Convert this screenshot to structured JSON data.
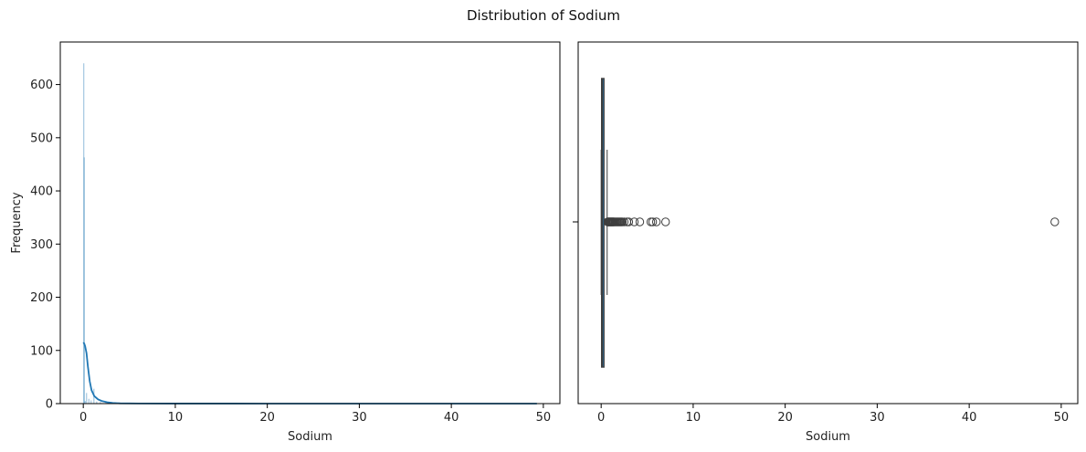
{
  "figure": {
    "suptitle": "Distribution of Sodium"
  },
  "chart_data": [
    {
      "type": "bar",
      "subtype": "histogram-with-kde",
      "title": "",
      "xlabel": "Sodium",
      "ylabel": "Frequency",
      "xlim": [
        -2.5,
        51.8
      ],
      "ylim": [
        0,
        680
      ],
      "xticks": [
        0,
        10,
        20,
        30,
        40,
        50
      ],
      "yticks": [
        0,
        100,
        200,
        300,
        400,
        500,
        600
      ],
      "bar_color": "#1f77b4",
      "kde_color": "#1f77b4",
      "bins": [
        {
          "x": 0.0,
          "count": 640
        },
        {
          "x": 0.05,
          "count": 463
        },
        {
          "x": 0.15,
          "count": 5
        },
        {
          "x": 0.3,
          "count": 20
        },
        {
          "x": 0.55,
          "count": 9
        },
        {
          "x": 0.8,
          "count": 6
        },
        {
          "x": 1.1,
          "count": 28
        },
        {
          "x": 1.4,
          "count": 4
        },
        {
          "x": 1.8,
          "count": 3
        },
        {
          "x": 2.4,
          "count": 2
        }
      ],
      "kde": {
        "x": [
          0,
          0.1,
          0.2,
          0.35,
          0.5,
          0.7,
          0.9,
          1.2,
          1.6,
          2.0,
          2.6,
          3.2,
          4.0,
          6,
          10,
          20,
          30,
          40,
          49.3
        ],
        "y": [
          115,
          113,
          108,
          95,
          70,
          42,
          25,
          14,
          8,
          5,
          2.5,
          1.2,
          0.5,
          0.2,
          0.1,
          0.05,
          0.05,
          0.05,
          0.05
        ]
      }
    },
    {
      "type": "box",
      "title": "",
      "xlabel": "Sodium",
      "xlim": [
        -2.5,
        51.8
      ],
      "xticks": [
        0,
        10,
        20,
        30,
        40,
        50
      ],
      "box_color": "#1f77b4",
      "edge_color": "#3f3f3f",
      "q1": 0.05,
      "median": 0.12,
      "q3": 0.3,
      "whisker_low": 0.0,
      "whisker_high": 0.65,
      "outliers": [
        0.7,
        0.75,
        0.8,
        0.85,
        0.9,
        0.95,
        1.0,
        1.05,
        1.1,
        1.15,
        1.2,
        1.25,
        1.3,
        1.35,
        1.4,
        1.5,
        1.6,
        1.7,
        1.8,
        1.9,
        2.0,
        2.1,
        2.2,
        2.3,
        2.5,
        2.8,
        3.0,
        3.6,
        4.2,
        5.4,
        5.6,
        6.0,
        7.0,
        49.3
      ]
    }
  ]
}
